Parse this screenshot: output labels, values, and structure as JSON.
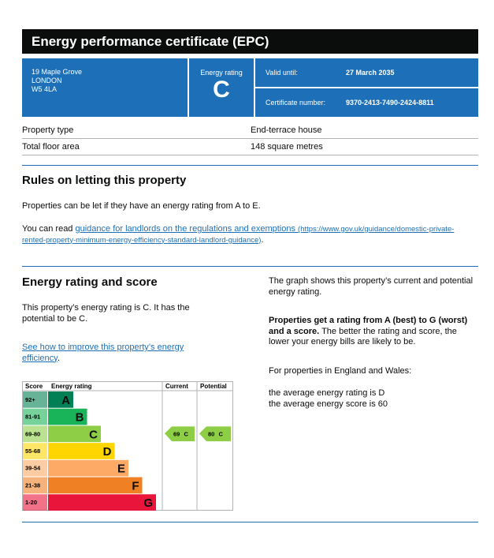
{
  "header": {
    "title": "Energy performance certificate (EPC)"
  },
  "summary": {
    "address": [
      "19 Maple Grove",
      "LONDON",
      "W5 4LA"
    ],
    "rating_label": "Energy rating",
    "rating": "C",
    "valid_until_label": "Valid until:",
    "valid_until": "27 March 2035",
    "certificate_number_label": "Certificate number:",
    "certificate_number": "9370-2413-7490-2424-8811"
  },
  "property": {
    "rows": [
      [
        "Property type",
        "End-terrace house"
      ],
      [
        "Total floor area",
        "148 square metres"
      ]
    ]
  },
  "rules": {
    "heading": "Rules on letting this property",
    "paragraph": "Properties can be let if they have an energy rating from A to E.",
    "guidance_prefix": "You can read",
    "guidance_link": "guidance for landlords on the regulations and exemptions",
    "guidance_url": "(https://www.gov.uk/guidance/domestic-private-rented-property-minimum-energy-efficiency-standard-landlord-guidance)",
    "guidance_suffix": "."
  },
  "energy": {
    "heading": "Energy rating and score",
    "text": "This property’s energy rating is C. It has the potential to be C.",
    "link": "See how to improve this property’s energy efficiency",
    "link_suffix": ".",
    "side": {
      "p1": "The graph shows this property’s current and potential energy rating.",
      "p2_bold": "Properties get a rating from A (best) to G (worst) and a score.",
      "p2_rest": "The better the rating and score, the lower your energy bills are likely to be.",
      "p3": "For properties in England and Wales:",
      "p4": "the average energy rating is D",
      "p5": "the average energy score is 60"
    },
    "chart": {
      "headers": [
        "Score",
        "Energy rating",
        "Current",
        "Potential"
      ],
      "bands": [
        {
          "score": "92+",
          "letter": "A"
        },
        {
          "score": "81-91",
          "letter": "B"
        },
        {
          "score": "69-80",
          "letter": "C"
        },
        {
          "score": "55-68",
          "letter": "D"
        },
        {
          "score": "39-54",
          "letter": "E"
        },
        {
          "score": "21-38",
          "letter": "F"
        },
        {
          "score": "1-20",
          "letter": "G"
        }
      ],
      "colors": [
        "#008054",
        "#19b459",
        "#8dce46",
        "#ffd500",
        "#fcaa65",
        "#ef8023",
        "#e9153b"
      ],
      "current": {
        "score": 69,
        "band": "C"
      },
      "potential": {
        "score": 80,
        "band": "C"
      }
    }
  }
}
